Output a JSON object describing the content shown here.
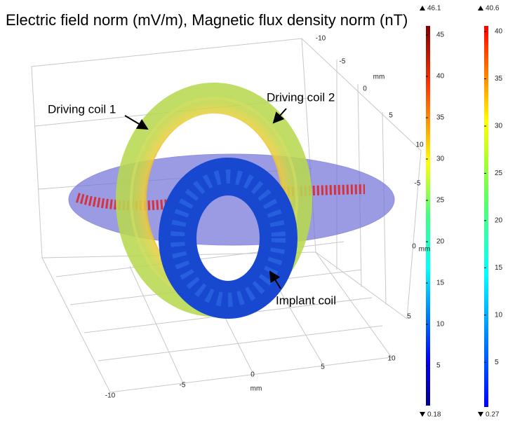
{
  "title": "Electric field norm (mV/m), Magnetic flux density norm (nT)",
  "annotations": [
    "Driving coil 1",
    "Driving coil 2",
    "Implant coil"
  ],
  "axes": {
    "x": {
      "label": "mm",
      "ticks": [
        -10,
        -5,
        0,
        5,
        10
      ]
    },
    "y": {
      "label": "mm",
      "ticks": [
        -5,
        0,
        5
      ]
    },
    "z": {
      "label": "mm",
      "ticks": [
        -10,
        -5,
        0,
        5,
        10
      ]
    }
  },
  "colorbars": [
    {
      "min": 0.18,
      "max": 46.1,
      "ticks": [
        5,
        10,
        15,
        20,
        25,
        30,
        35,
        40,
        45
      ]
    },
    {
      "min": 0.27,
      "max": 40.6,
      "ticks": [
        5,
        10,
        15,
        20,
        25,
        30,
        35,
        40
      ]
    }
  ]
}
